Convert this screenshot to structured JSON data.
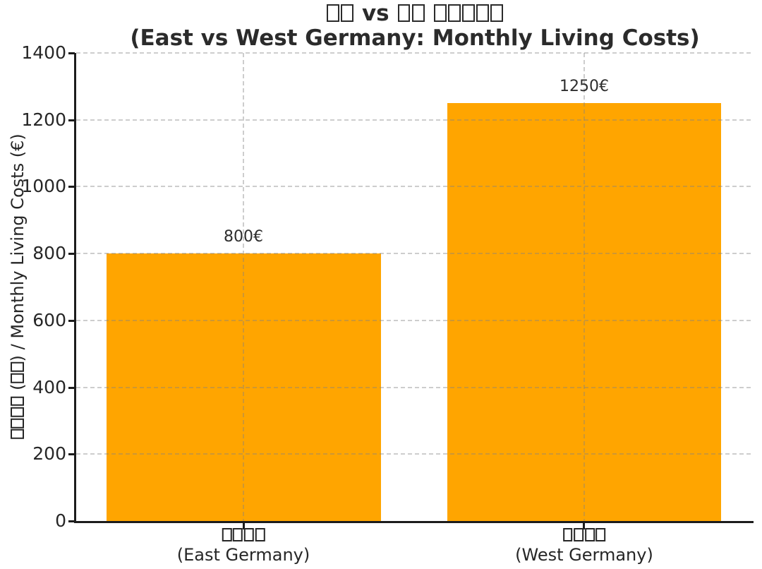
{
  "chart_data": {
    "type": "bar",
    "title": {
      "line1": "□□ vs □□ □□□□□",
      "line2": "(East vs West Germany: Monthly Living Costs)"
    },
    "ylabel": "□□□□ (□□) / Monthly Living Costs (€)",
    "categories": [
      {
        "native": "□□□□",
        "english": "(East Germany)"
      },
      {
        "native": "□□□□",
        "english": "(West Germany)"
      }
    ],
    "values": [
      800,
      1250
    ],
    "value_labels": [
      "800€",
      "1250€"
    ],
    "yticks": [
      0,
      200,
      400,
      600,
      800,
      1000,
      1200,
      1400
    ],
    "ylim": [
      0,
      1400
    ],
    "bar_color": "#FFA500",
    "grid": {
      "style": "dashed",
      "color": "#cccccc"
    },
    "legend": "none"
  }
}
